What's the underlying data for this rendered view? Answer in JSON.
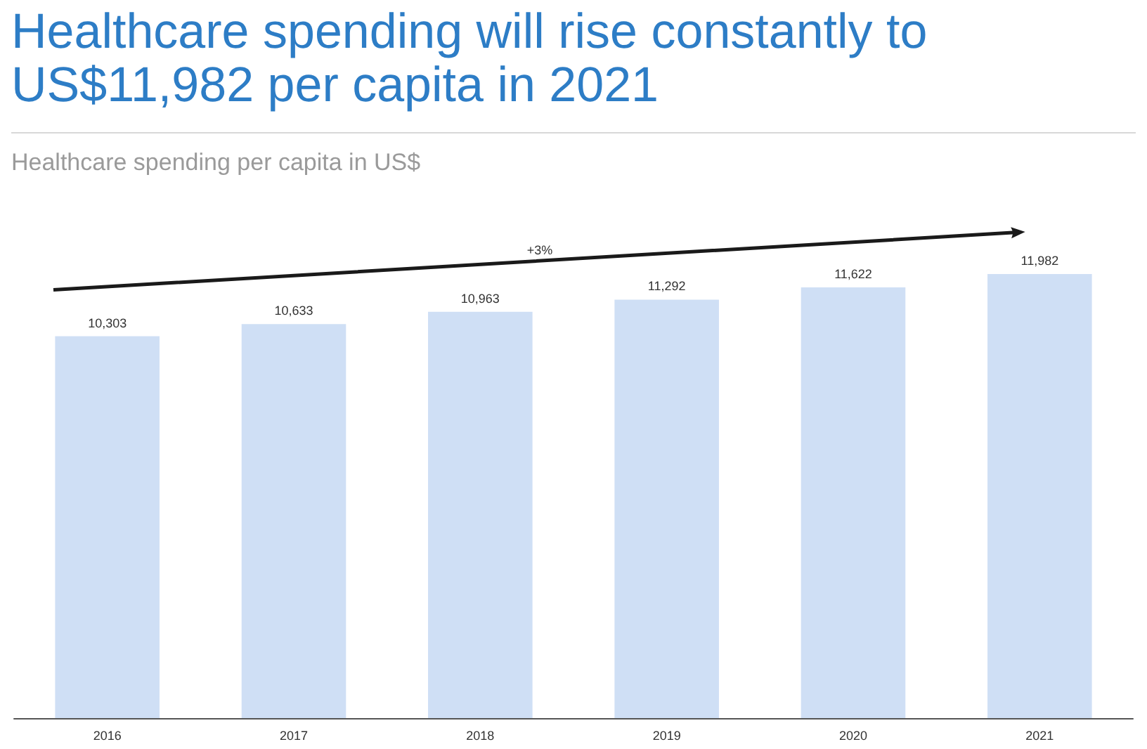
{
  "chart_data": {
    "type": "bar",
    "title": "Healthcare spending will rise constantly to\nUS$11,982 per capita in 2021",
    "subtitle": "Healthcare spending per capita in US$",
    "categories": [
      "2016",
      "2017",
      "2018",
      "2019",
      "2020",
      "2021"
    ],
    "values": [
      10303,
      10633,
      10963,
      11292,
      11622,
      11982
    ],
    "color": "#cfdff5",
    "value_labels": [
      "10,303",
      "10,633",
      "10,963",
      "11,292",
      "11,622",
      "11,982"
    ],
    "grid": false,
    "annotations": [
      "+3%"
    ]
  }
}
